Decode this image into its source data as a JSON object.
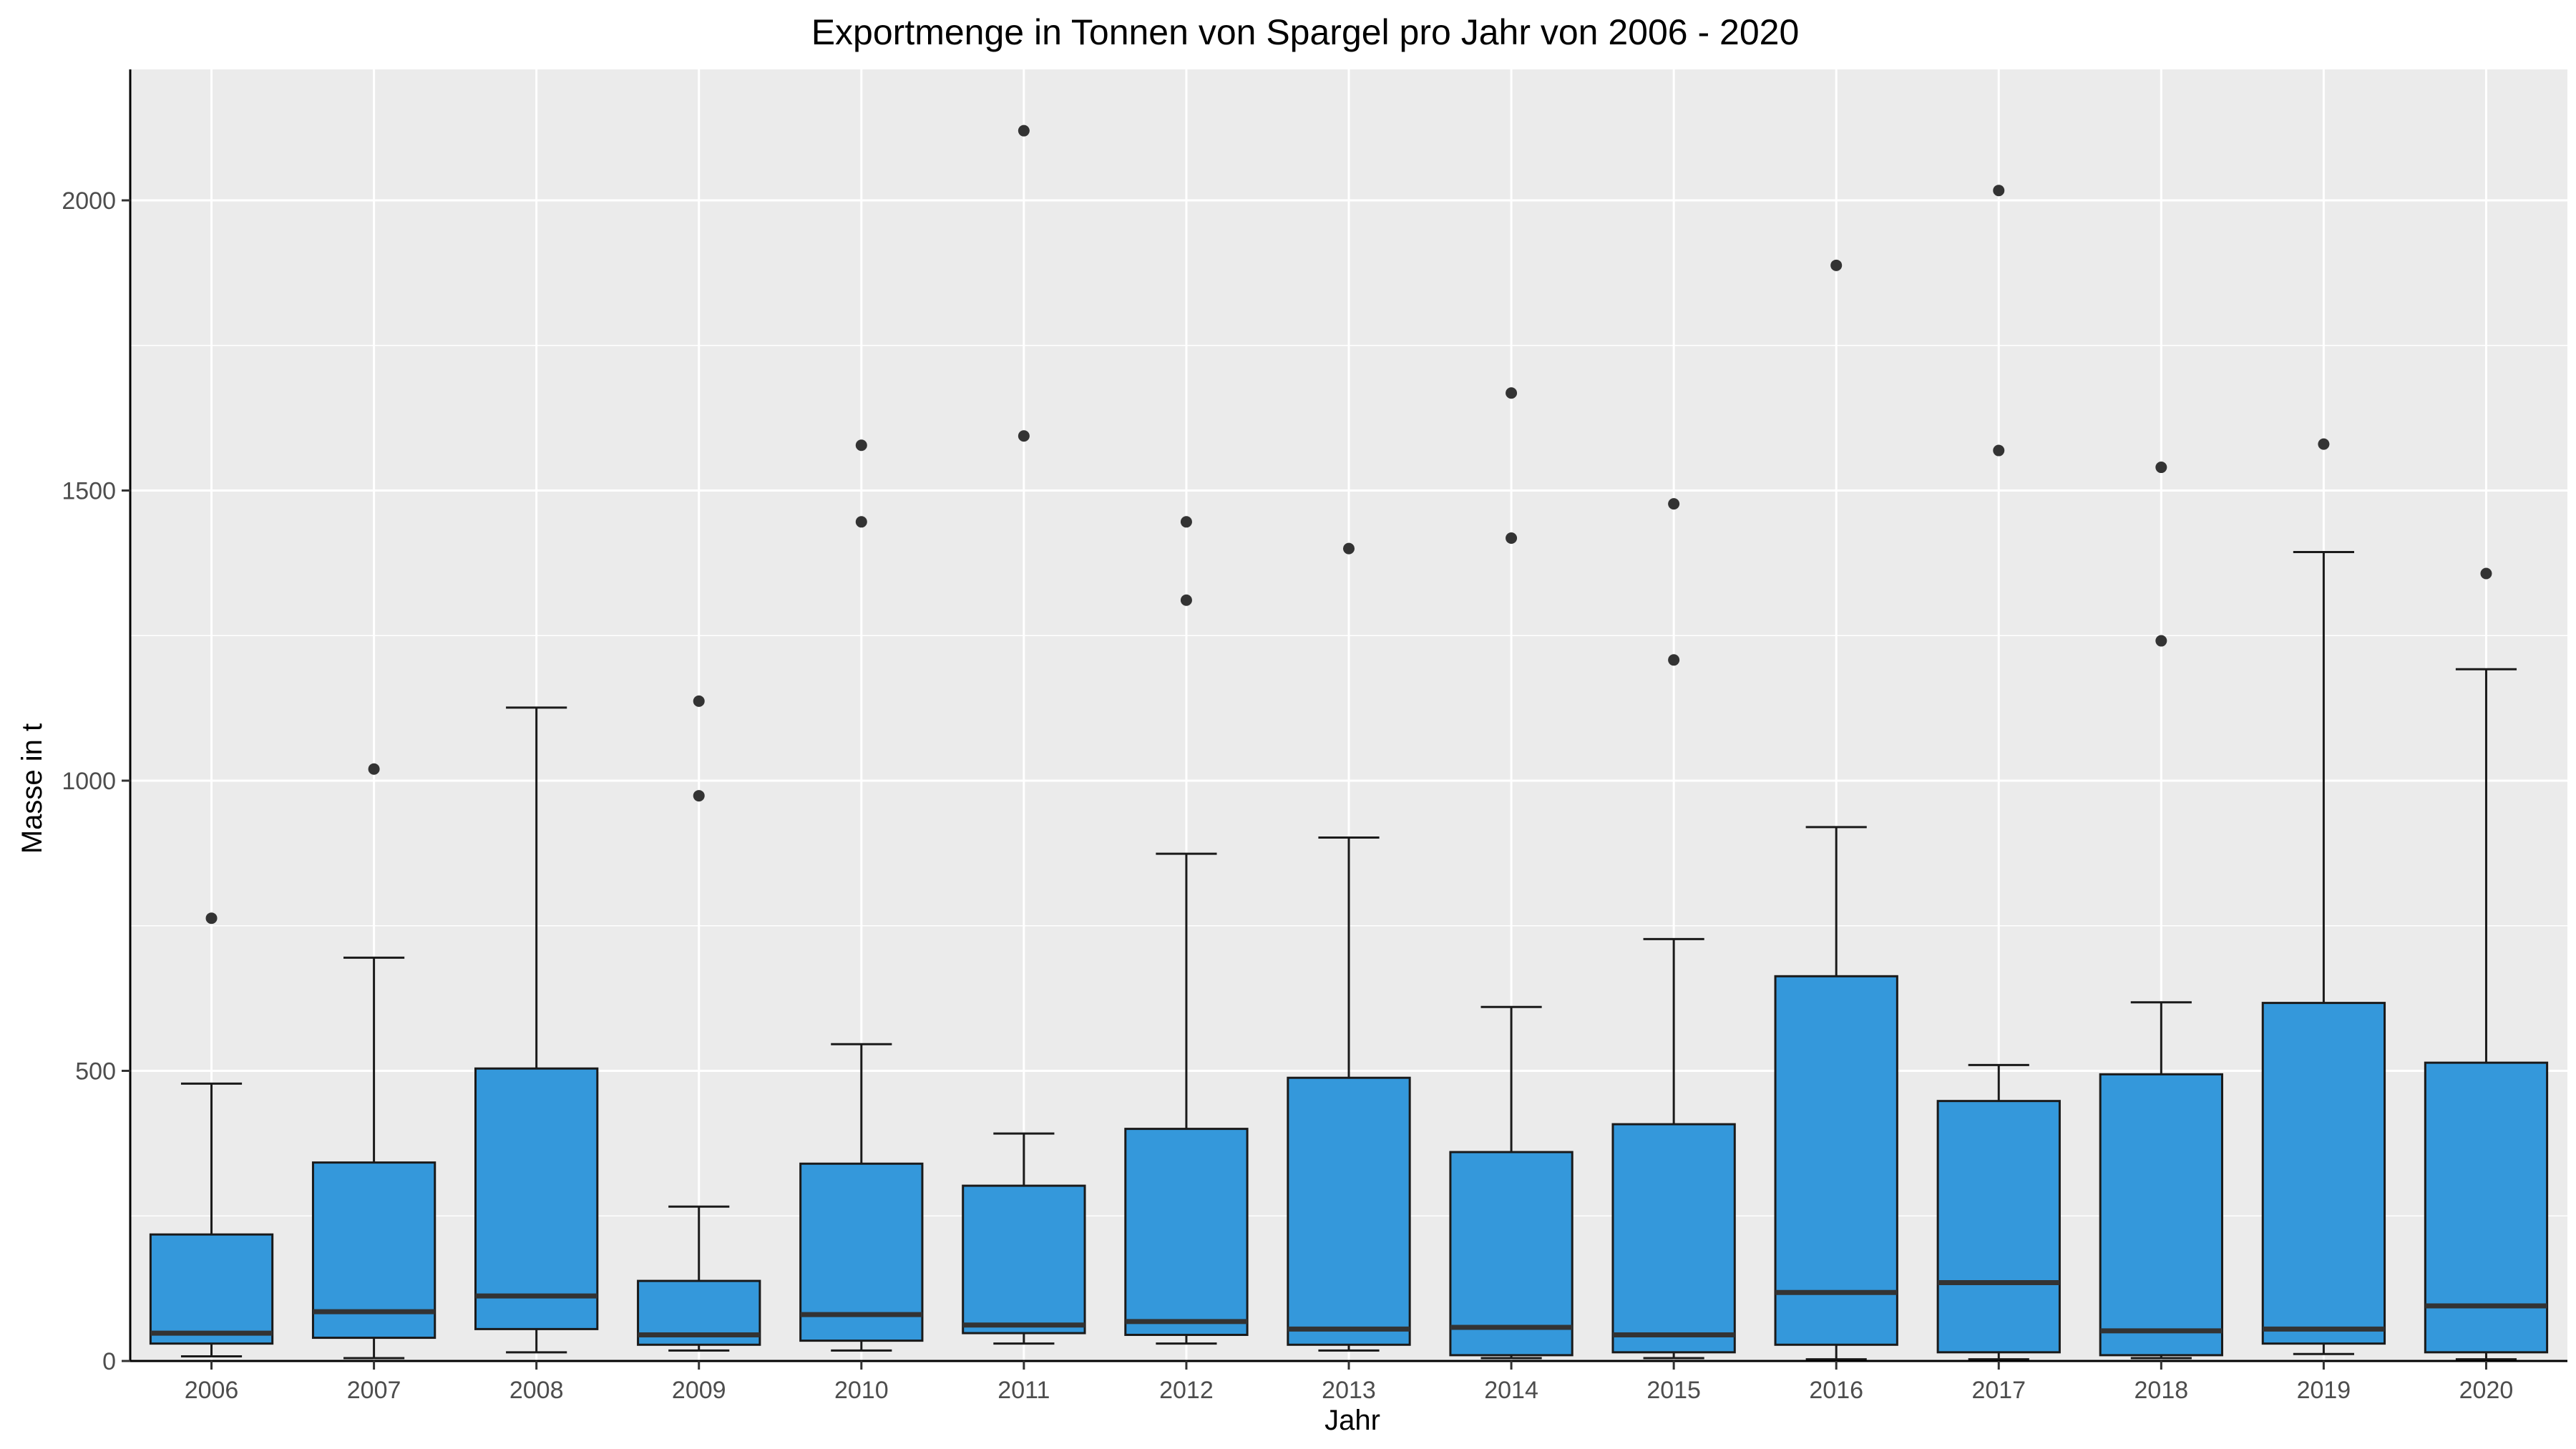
{
  "chart_data": {
    "type": "boxplot",
    "title": "Exportmenge in Tonnen von Spargel pro Jahr von 2006 - 2020",
    "xlabel": "Jahr",
    "ylabel": "Masse in t",
    "ylim": [
      0,
      2230
    ],
    "yticks": [
      0,
      500,
      1000,
      1500,
      2000
    ],
    "grid": true,
    "legend": "none",
    "colors": {
      "box_fill": "#3498db",
      "panel_bg": "#ebebeb",
      "grid": "#ffffff",
      "outline": "#1a1a1a",
      "outlier": "#333333"
    },
    "categories": [
      "2006",
      "2007",
      "2008",
      "2009",
      "2010",
      "2011",
      "2012",
      "2013",
      "2014",
      "2015",
      "2016",
      "2017",
      "2018",
      "2019",
      "2020"
    ],
    "boxes": [
      {
        "year": "2006",
        "whisker_low": 8,
        "q1": 30,
        "median": 48,
        "q3": 218,
        "whisker_high": 478,
        "outliers": [
          763
        ]
      },
      {
        "year": "2007",
        "whisker_low": 5,
        "q1": 40,
        "median": 85,
        "q3": 342,
        "whisker_high": 695,
        "outliers": [
          1020
        ]
      },
      {
        "year": "2008",
        "whisker_low": 15,
        "q1": 55,
        "median": 112,
        "q3": 504,
        "whisker_high": 1126,
        "outliers": []
      },
      {
        "year": "2009",
        "whisker_low": 18,
        "q1": 28,
        "median": 45,
        "q3": 138,
        "whisker_high": 266,
        "outliers": [
          974,
          1137
        ]
      },
      {
        "year": "2010",
        "whisker_low": 18,
        "q1": 35,
        "median": 80,
        "q3": 340,
        "whisker_high": 546,
        "outliers": [
          1446,
          1578
        ]
      },
      {
        "year": "2011",
        "whisker_low": 30,
        "q1": 48,
        "median": 62,
        "q3": 302,
        "whisker_high": 392,
        "outliers": [
          1594,
          2120
        ]
      },
      {
        "year": "2012",
        "whisker_low": 30,
        "q1": 45,
        "median": 68,
        "q3": 400,
        "whisker_high": 874,
        "outliers": [
          1311,
          1446
        ]
      },
      {
        "year": "2013",
        "whisker_low": 18,
        "q1": 28,
        "median": 55,
        "q3": 488,
        "whisker_high": 902,
        "outliers": [
          1400
        ]
      },
      {
        "year": "2014",
        "whisker_low": 5,
        "q1": 10,
        "median": 58,
        "q3": 360,
        "whisker_high": 610,
        "outliers": [
          1418,
          1668
        ]
      },
      {
        "year": "2015",
        "whisker_low": 5,
        "q1": 15,
        "median": 45,
        "q3": 408,
        "whisker_high": 727,
        "outliers": [
          1208,
          1477
        ]
      },
      {
        "year": "2016",
        "whisker_low": 3,
        "q1": 28,
        "median": 118,
        "q3": 663,
        "whisker_high": 920,
        "outliers": [
          1888
        ]
      },
      {
        "year": "2017",
        "whisker_low": 3,
        "q1": 15,
        "median": 135,
        "q3": 448,
        "whisker_high": 510,
        "outliers": [
          1569,
          2017
        ]
      },
      {
        "year": "2018",
        "whisker_low": 5,
        "q1": 10,
        "median": 52,
        "q3": 494,
        "whisker_high": 618,
        "outliers": [
          1241,
          1540
        ]
      },
      {
        "year": "2019",
        "whisker_low": 12,
        "q1": 30,
        "median": 55,
        "q3": 617,
        "whisker_high": 1394,
        "outliers": [
          1580
        ]
      },
      {
        "year": "2020",
        "whisker_low": 3,
        "q1": 15,
        "median": 95,
        "q3": 514,
        "whisker_high": 1192,
        "outliers": [
          1357
        ]
      }
    ]
  }
}
